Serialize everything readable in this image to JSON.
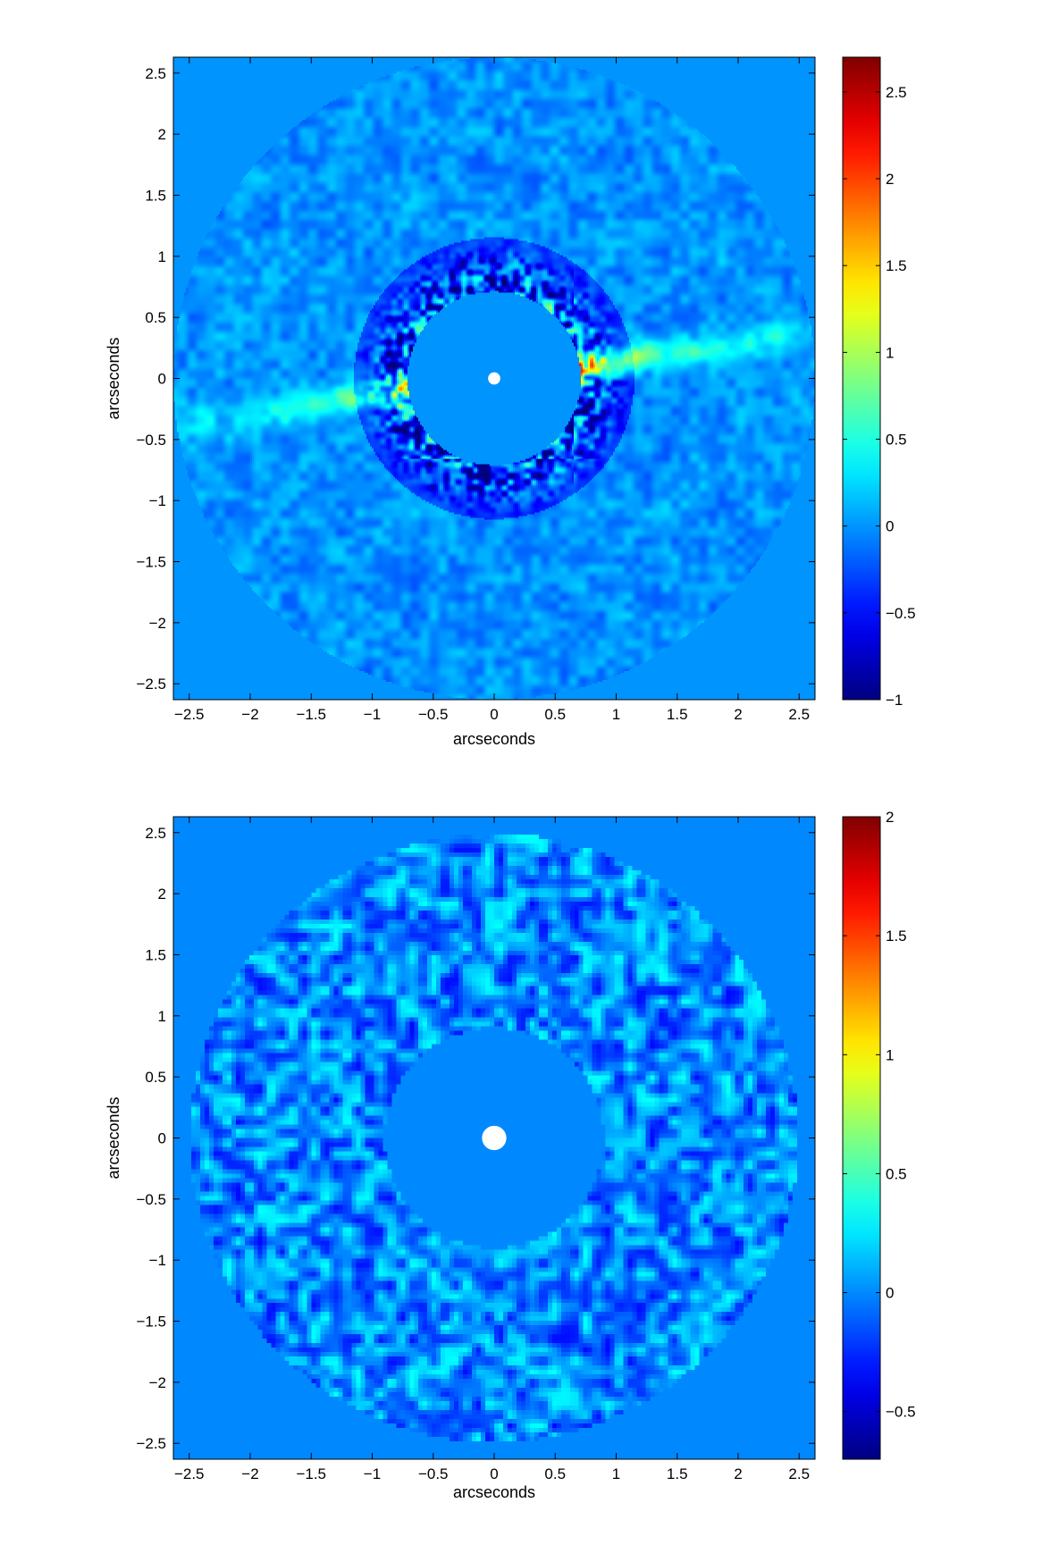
{
  "chart_data": [
    {
      "type": "heatmap",
      "title": "",
      "xlabel": "arcseconds",
      "ylabel": "arcseconds",
      "xlim": [
        -2.63,
        2.63
      ],
      "ylim": [
        -2.63,
        2.63
      ],
      "xticks": [
        -2.5,
        -2,
        -1.5,
        -1,
        -0.5,
        0,
        0.5,
        1,
        1.5,
        2,
        2.5
      ],
      "yticks": [
        -2.5,
        -2,
        -1.5,
        -1,
        -0.5,
        0,
        0.5,
        1,
        1.5,
        2,
        2.5
      ],
      "xtick_labels": [
        "−2.5",
        "−2",
        "−1.5",
        "−1",
        "−0.5",
        "0",
        "0.5",
        "1",
        "1.5",
        "2",
        "2.5"
      ],
      "ytick_labels": [
        "−2.5",
        "−2",
        "−1.5",
        "−1",
        "−0.5",
        "0",
        "0.5",
        "1",
        "1.5",
        "2",
        "2.5"
      ],
      "colormap": "jet",
      "colorbar": {
        "range": [
          -1,
          2.7
        ],
        "ticks": [
          -1,
          -0.5,
          0,
          0.5,
          1,
          1.5,
          2,
          2.5
        ],
        "tick_labels": [
          "−1",
          "−0.5",
          "0",
          "0.5",
          "1",
          "1.5",
          "2",
          "2.5"
        ]
      },
      "mask_inner_radius": 0.71,
      "data_outer_radius": 2.63,
      "star_marker_radius": 0.05,
      "features": {
        "disk_position_angle_deg": 8,
        "disk_peak_value": 2.2,
        "background_value": 0
      }
    },
    {
      "type": "heatmap",
      "title": "",
      "xlabel": "arcseconds",
      "ylabel": "arcseconds",
      "xlim": [
        -2.63,
        2.63
      ],
      "ylim": [
        -2.63,
        2.63
      ],
      "xticks": [
        -2.5,
        -2,
        -1.5,
        -1,
        -0.5,
        0,
        0.5,
        1,
        1.5,
        2,
        2.5
      ],
      "yticks": [
        -2.5,
        -2,
        -1.5,
        -1,
        -0.5,
        0,
        0.5,
        1,
        1.5,
        2,
        2.5
      ],
      "xtick_labels": [
        "−2.5",
        "−2",
        "−1.5",
        "−1",
        "−0.5",
        "0",
        "0.5",
        "1",
        "1.5",
        "2",
        "2.5"
      ],
      "ytick_labels": [
        "−2.5",
        "−2",
        "−1.5",
        "−1",
        "−0.5",
        "0",
        "0.5",
        "1",
        "1.5",
        "2",
        "2.5"
      ],
      "colormap": "jet",
      "colorbar": {
        "range": [
          -0.7,
          2.0
        ],
        "ticks": [
          -0.5,
          0,
          0.5,
          1,
          1.5,
          2
        ],
        "tick_labels": [
          "−0.5",
          "0",
          "0.5",
          "1",
          "1.5",
          "2"
        ]
      },
      "mask_inner_radius": 0.9,
      "data_outer_radius": 2.49,
      "star_marker_radius": 0.1,
      "features": {
        "noise_amplitude": 0.35,
        "background_value": 0
      }
    }
  ]
}
